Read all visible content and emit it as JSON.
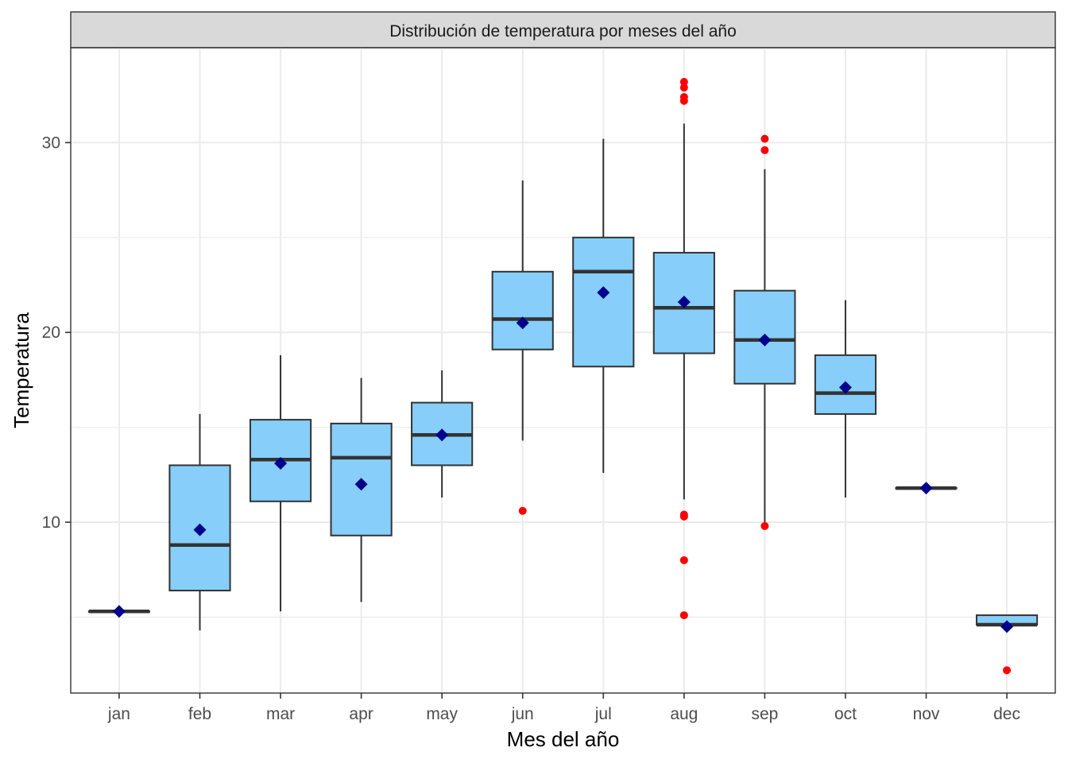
{
  "chart_data": {
    "type": "boxplot",
    "title": "Distribución de temperatura por meses del año",
    "xlabel": "Mes del año",
    "ylabel": "Temperatura",
    "ylim": [
      1.0,
      35.0
    ],
    "yticks": [
      10,
      20,
      30
    ],
    "grid": true,
    "colors": {
      "box_fill": "#87CEFA",
      "box_stroke": "#333333",
      "median": "#333333",
      "mean_marker": "#00008B",
      "outlier": "#FF0000",
      "strip_fill": "#D9D9D9",
      "grid": "#EBEBEB"
    },
    "categories": [
      "jan",
      "feb",
      "mar",
      "apr",
      "may",
      "jun",
      "jul",
      "aug",
      "sep",
      "oct",
      "nov",
      "dec"
    ],
    "boxes": [
      {
        "month": "jan",
        "whisker_low": 5.3,
        "q1": 5.3,
        "median": 5.3,
        "q3": 5.3,
        "whisker_high": 5.3,
        "mean": 5.3,
        "outliers": []
      },
      {
        "month": "feb",
        "whisker_low": 4.3,
        "q1": 6.4,
        "median": 8.8,
        "q3": 13.0,
        "whisker_high": 15.7,
        "mean": 9.6,
        "outliers": []
      },
      {
        "month": "mar",
        "whisker_low": 5.3,
        "q1": 11.1,
        "median": 13.3,
        "q3": 15.4,
        "whisker_high": 18.8,
        "mean": 13.1,
        "outliers": []
      },
      {
        "month": "apr",
        "whisker_low": 5.8,
        "q1": 9.3,
        "median": 13.4,
        "q3": 15.2,
        "whisker_high": 17.6,
        "mean": 12.0,
        "outliers": []
      },
      {
        "month": "may",
        "whisker_low": 11.3,
        "q1": 13.0,
        "median": 14.6,
        "q3": 16.3,
        "whisker_high": 18.0,
        "mean": 14.6,
        "outliers": []
      },
      {
        "month": "jun",
        "whisker_low": 14.3,
        "q1": 19.1,
        "median": 20.7,
        "q3": 23.2,
        "whisker_high": 28.0,
        "mean": 20.5,
        "outliers": [
          10.6
        ]
      },
      {
        "month": "jul",
        "whisker_low": 12.6,
        "q1": 18.2,
        "median": 23.2,
        "q3": 25.0,
        "whisker_high": 30.2,
        "mean": 22.1,
        "outliers": []
      },
      {
        "month": "aug",
        "whisker_low": 11.2,
        "q1": 18.9,
        "median": 21.3,
        "q3": 24.2,
        "whisker_high": 31.0,
        "mean": 21.6,
        "outliers": [
          33.2,
          32.9,
          32.4,
          32.2,
          10.4,
          10.3,
          8.0,
          5.1
        ]
      },
      {
        "month": "sep",
        "whisker_low": 10.0,
        "q1": 17.3,
        "median": 19.6,
        "q3": 22.2,
        "whisker_high": 28.6,
        "mean": 19.6,
        "outliers": [
          30.2,
          29.6,
          9.8
        ]
      },
      {
        "month": "oct",
        "whisker_low": 11.3,
        "q1": 15.7,
        "median": 16.8,
        "q3": 18.8,
        "whisker_high": 21.7,
        "mean": 17.1,
        "outliers": []
      },
      {
        "month": "nov",
        "whisker_low": 11.8,
        "q1": 11.8,
        "median": 11.8,
        "q3": 11.8,
        "whisker_high": 11.8,
        "mean": 11.8,
        "outliers": []
      },
      {
        "month": "dec",
        "whisker_low": 4.6,
        "q1": 4.6,
        "median": 4.6,
        "q3": 5.1,
        "whisker_high": 5.1,
        "mean": 4.5,
        "outliers": [
          2.2
        ]
      }
    ]
  }
}
